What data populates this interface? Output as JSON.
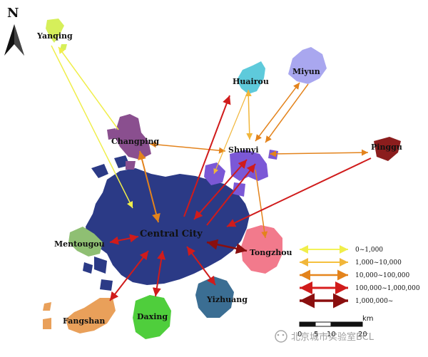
{
  "north_label": "N",
  "places": {
    "central": "Central City",
    "yanqing": "Yanqing",
    "huairou": "Huairou",
    "miyun": "Miyun",
    "changping": "Changping",
    "shunyi": "Shunyi",
    "pinggu": "Pinggu",
    "mentougou": "Mentougou",
    "tongzhou": "Tongzhou",
    "fangshan": "Fangshan",
    "daxing": "Daxing",
    "yizhuang": "Yizhuang"
  },
  "colors": {
    "central": "#2b3a86",
    "yanqing": "#d6ef5a",
    "huairou": "#5ecadb",
    "miyun": "#a9a7ef",
    "changping": "#8a4f8f",
    "shunyi": "#7b58d6",
    "pinggu": "#8b1d1d",
    "mentougou": "#8fbf73",
    "tongzhou": "#f27a8c",
    "fangshan": "#e9a05a",
    "daxing": "#4fce3c",
    "yizhuang": "#3b6e93"
  },
  "legend": [
    {
      "label": "0~1,000",
      "color": "#f3f35a"
    },
    {
      "label": "1,000~10,000",
      "color": "#f5c03e"
    },
    {
      "label": "10,000~100,000",
      "color": "#e6861d"
    },
    {
      "label": "100,000~1,000,000",
      "color": "#d81e1e"
    },
    {
      "label": "1,000,000~",
      "color": "#8b0f0f"
    }
  ],
  "scale": {
    "unit": "km",
    "ticks": [
      "0",
      "5",
      "10",
      "20"
    ]
  },
  "watermark": "北京城市实验室BCL"
}
